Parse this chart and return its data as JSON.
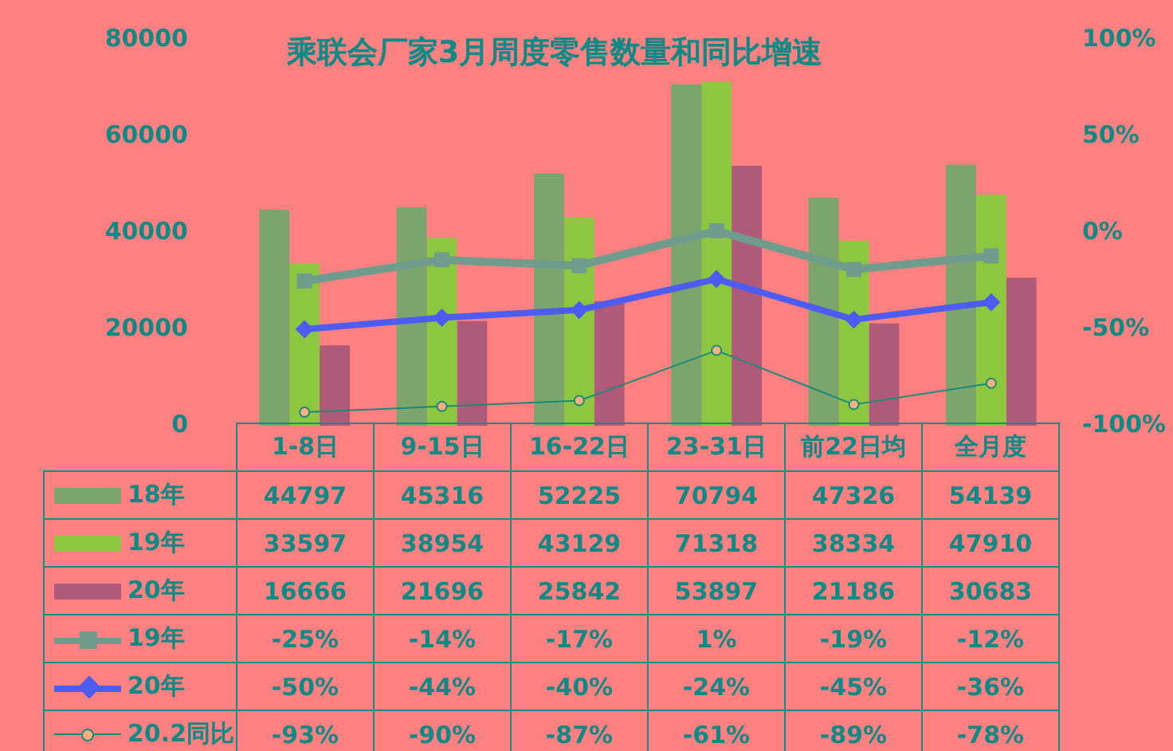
{
  "chart_data": {
    "type": "bar",
    "title": "乘联会厂家3月周度零售数量和同比增速",
    "categories": [
      "1-8日",
      "9-15日",
      "16-22日",
      "23-31日",
      "前22日均",
      "全月度"
    ],
    "series": [
      {
        "name": "18年",
        "color": "#7ba56c",
        "values": [
          44797,
          45316,
          52225,
          70794,
          47326,
          54139
        ],
        "value_labels": [
          "44797",
          "45316",
          "52225",
          "70794",
          "47326",
          "54139"
        ]
      },
      {
        "name": "19年",
        "color": "#8dc63f",
        "values": [
          33597,
          38954,
          43129,
          71318,
          38334,
          47910
        ],
        "value_labels": [
          "33597",
          "38954",
          "43129",
          "71318",
          "38334",
          "47910"
        ]
      },
      {
        "name": "20年",
        "color": "#b05a7a",
        "values": [
          16666,
          21696,
          25842,
          53897,
          21186,
          30683
        ],
        "value_labels": [
          "16666",
          "21696",
          "25842",
          "53897",
          "21186",
          "30683"
        ]
      },
      {
        "name": "19年",
        "type": "line",
        "axis": "y2",
        "marker": "square",
        "color": "#6f9c8c",
        "values": [
          -25,
          -14,
          -17,
          1,
          -19,
          -12
        ],
        "value_labels": [
          "-25%",
          "-14%",
          "-17%",
          "1%",
          "-19%",
          "-12%"
        ]
      },
      {
        "name": "20年",
        "type": "line",
        "axis": "y2",
        "marker": "diamond",
        "color": "#4d5cf2",
        "values": [
          -50,
          -44,
          -40,
          -24,
          -45,
          -36
        ],
        "value_labels": [
          "-50%",
          "-44%",
          "-40%",
          "-24%",
          "-45%",
          "-36%"
        ]
      },
      {
        "name": "20.2同比",
        "type": "line",
        "axis": "y2",
        "marker": "circle",
        "color": "#1a8a78",
        "values": [
          -93,
          -90,
          -87,
          -61,
          -89,
          -78
        ],
        "value_labels": [
          "-93%",
          "-90%",
          "-87%",
          "-61%",
          "-89%",
          "-78%"
        ]
      }
    ],
    "ylim": [
      0,
      80000
    ],
    "yticks": [
      0,
      20000,
      40000,
      60000,
      80000
    ],
    "y2lim": [
      -100,
      100
    ],
    "y2ticks": [
      {
        "value": -100,
        "label": "-100%"
      },
      {
        "value": -50,
        "label": "-50%"
      },
      {
        "value": 0,
        "label": "0%"
      },
      {
        "value": 50,
        "label": "50%"
      },
      {
        "value": 100,
        "label": "100%"
      }
    ],
    "legend": "bottom"
  }
}
